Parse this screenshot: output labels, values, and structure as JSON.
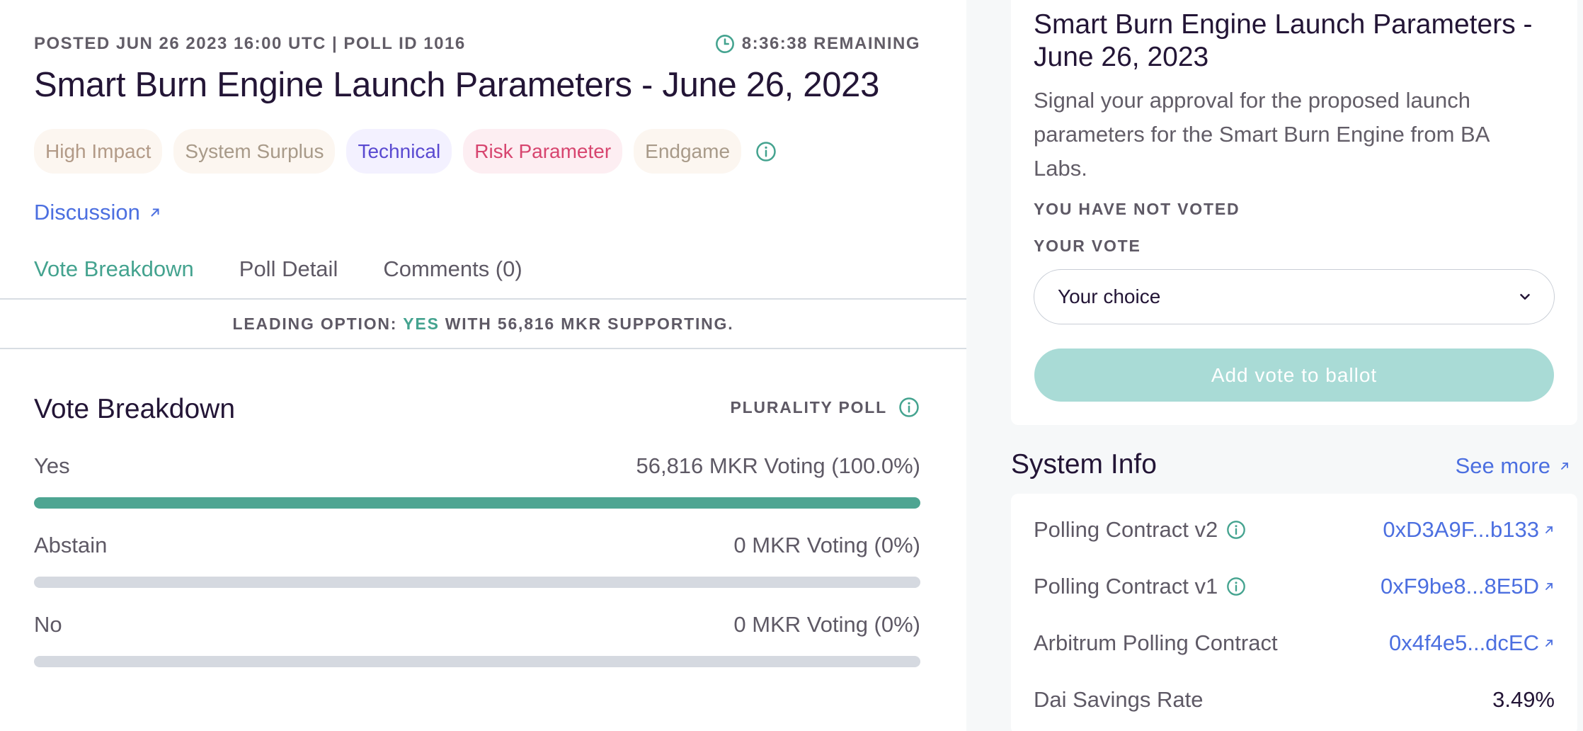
{
  "poll": {
    "meta": "POSTED JUN 26 2023 16:00 UTC | POLL ID 1016",
    "remaining": "8:36:38 REMAINING",
    "title": "Smart Burn Engine Launch Parameters - June 26, 2023",
    "tags": [
      "High Impact",
      "System Surplus",
      "Technical",
      "Risk Parameter",
      "Endgame"
    ],
    "discussion_label": "Discussion",
    "tabs": [
      "Vote Breakdown",
      "Poll Detail",
      "Comments (0)"
    ],
    "active_tab": "Vote Breakdown",
    "leading_prefix": "LEADING OPTION:",
    "leading_option": "YES",
    "leading_suffix": "WITH 56,816 MKR SUPPORTING."
  },
  "breakdown": {
    "title": "Vote Breakdown",
    "poll_type": "PLURALITY POLL",
    "options": [
      {
        "label": "Yes",
        "result": "56,816 MKR Voting (100.0%)",
        "share": 100.0
      },
      {
        "label": "Abstain",
        "result": "0 MKR Voting (0%)",
        "share": 0
      },
      {
        "label": "No",
        "result": "0 MKR Voting (0%)",
        "share": 0
      }
    ]
  },
  "vote_card": {
    "title": "Smart Burn Engine Launch Parameters - June 26, 2023",
    "description": "Signal your approval for the proposed launch parameters for the Smart Burn Engine from BA Labs.",
    "status": "YOU HAVE NOT VOTED",
    "vote_label": "YOUR VOTE",
    "select_value": "Your choice",
    "button_label": "Add vote to ballot"
  },
  "system_info": {
    "title": "System Info",
    "see_more": "See more",
    "rows": [
      {
        "label": "Polling Contract v2",
        "value": "0xD3A9F...b133"
      },
      {
        "label": "Polling Contract v1",
        "value": "0xF9be8...8E5D"
      },
      {
        "label": "Arbitrum Polling Contract",
        "value": "0x4f4e5...dcEC"
      },
      {
        "label": "Dai Savings Rate",
        "value": "3.49%"
      }
    ]
  },
  "colors": {
    "accent_green": "#44a38f",
    "link_blue": "#4c6fe0",
    "heading": "#231536"
  },
  "icons": [
    "clock-icon",
    "info-icon",
    "arrow-up-right-icon",
    "chevron-down-icon"
  ]
}
